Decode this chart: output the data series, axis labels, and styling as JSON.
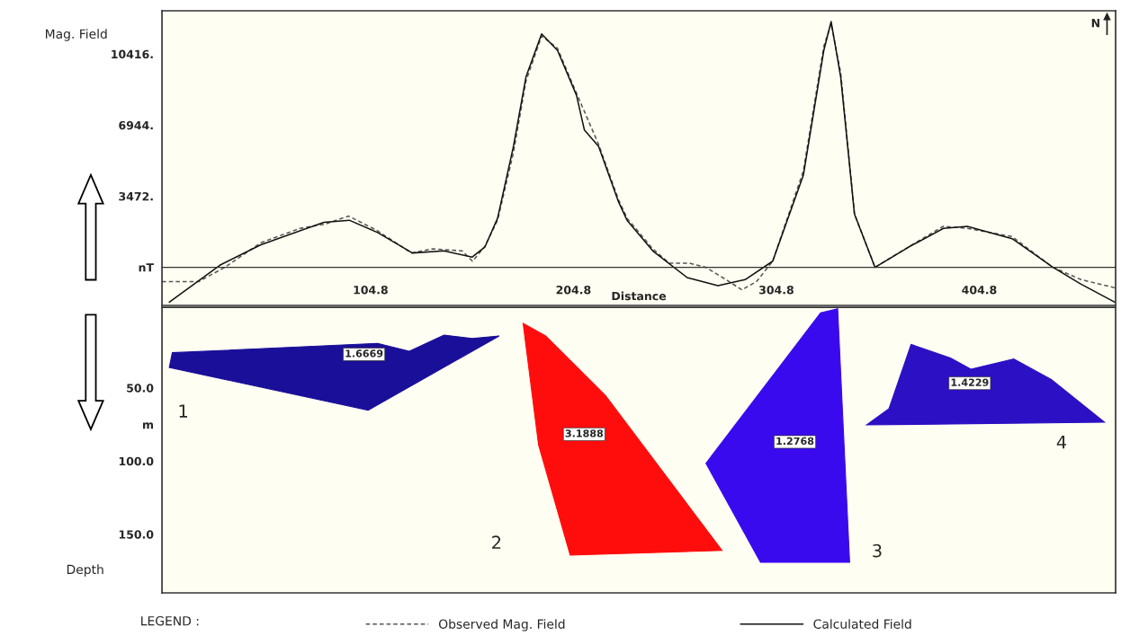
{
  "chart_data": [
    {
      "type": "line",
      "ylabel": "Mag. Field",
      "xlabel": "Distance",
      "legend_title": "LEGEND :",
      "legend": "bottom",
      "annotations": [
        "N"
      ],
      "xlim": [
        2,
        472
      ],
      "ylim": [
        -1860,
        12530
      ],
      "xticks": [
        104.8,
        204.8,
        304.8,
        404.8
      ],
      "yticks": [
        {
          "value": 0,
          "label": "nT"
        },
        {
          "value": 3472,
          "label": "3472."
        },
        {
          "value": 6944,
          "label": "6944."
        },
        {
          "value": 10416,
          "label": "10416."
        }
      ],
      "ref_lines": [
        {
          "axis": "y",
          "value": 0,
          "color": "#333333"
        }
      ],
      "series": [
        {
          "name": "Observed Mag. Field",
          "color": "#555555",
          "line_style": "dashed",
          "x": [
            2,
            20,
            33,
            50.7,
            70,
            82,
            94,
            108,
            125,
            135,
            150,
            155,
            161,
            167.4,
            175.2,
            181.4,
            189.1,
            196.9,
            206.3,
            217.2,
            227,
            231.2,
            243.9,
            252,
            262,
            270,
            280,
            287.8,
            295,
            303,
            318.1,
            328.2,
            331.8,
            336.5,
            343.3,
            353.4,
            370,
            387,
            399,
            421,
            441,
            455,
            471.6
          ],
          "values": [
            -700,
            -700,
            0,
            1200,
            1900,
            2100,
            2500,
            1800,
            700,
            900,
            800,
            300,
            1000,
            2300,
            5600,
            9100,
            11300,
            10700,
            8500,
            6000,
            3300,
            2400,
            900,
            200,
            200,
            0,
            -600,
            -1100,
            -700,
            300,
            4700,
            10800,
            11900,
            9500,
            2600,
            0,
            1000,
            2000,
            1900,
            1500,
            0,
            -600,
            -1000
          ]
        },
        {
          "name": "Calculated Field",
          "color": "#111111",
          "line_style": "solid",
          "x": [
            5.6,
            30.5,
            50.7,
            81.8,
            94.3,
            108.3,
            125.4,
            141,
            154.9,
            161.2,
            167.4,
            175.2,
            181.4,
            189.1,
            196.9,
            206.3,
            210.2,
            217.2,
            227,
            231.2,
            243.9,
            260.8,
            276,
            289.4,
            303,
            318.1,
            328.2,
            331.8,
            336.5,
            343.3,
            353.4,
            370.2,
            387.1,
            398.9,
            421,
            441.2,
            454.6,
            471.6
          ],
          "values": [
            -1700,
            100,
            1100,
            2200,
            2300,
            1700,
            700,
            800,
            500,
            1000,
            2400,
            5900,
            9300,
            11400,
            10600,
            8400,
            6700,
            5900,
            3200,
            2300,
            800,
            -500,
            -900,
            -600,
            300,
            4500,
            10600,
            12000,
            9300,
            2600,
            0,
            1000,
            1900,
            2000,
            1400,
            0,
            -800,
            -1700
          ]
        }
      ]
    },
    {
      "type": "area",
      "ylabel": "Depth",
      "tick_labels": "y",
      "xlim": [
        2,
        472
      ],
      "ylim": [
        190,
        -5
      ],
      "yticks": [
        {
          "value": 50,
          "label": "50.0"
        },
        {
          "value": 75,
          "label": "m"
        },
        {
          "value": 100,
          "label": "100.0"
        },
        {
          "value": 150,
          "label": "150.0"
        }
      ],
      "series": [
        {
          "color": "#1a0f99",
          "x": [
            5.6,
            7.1,
            108.3,
            123.9,
            141.0,
            154.9,
            168.2,
            103.6
          ],
          "values": [
            36.1,
            26.0,
            19.6,
            25.0,
            14.0,
            16.3,
            14.6,
            65.2
          ]
        },
        {
          "color": "#ff0d0d",
          "x": [
            180.0,
            191.1,
            220.6,
            278.0,
            203.2,
            187.6
          ],
          "values": [
            6.0,
            14.6,
            55.3,
            161.0,
            164.2,
            88.9
          ]
        },
        {
          "color": "#3a0aee",
          "x": [
            326.6,
            335.0,
            340.9,
            297.0,
            270.1
          ],
          "values": [
            -1.2,
            -4.0,
            169.1,
            169.1,
            101.5
          ]
        },
        {
          "color": "#2c10c4",
          "x": [
            349.3,
            360.3,
            371.2,
            390.6,
            400.7,
            421.8,
            440.3,
            466.5
          ],
          "values": [
            75.3,
            64.2,
            20.3,
            29.6,
            37.3,
            30.3,
            44.3,
            73.5
          ]
        }
      ],
      "annotations": [
        "1.6669",
        "3.1888",
        "1.2768",
        "1.4229",
        "1",
        "2",
        "3",
        "4"
      ]
    }
  ]
}
